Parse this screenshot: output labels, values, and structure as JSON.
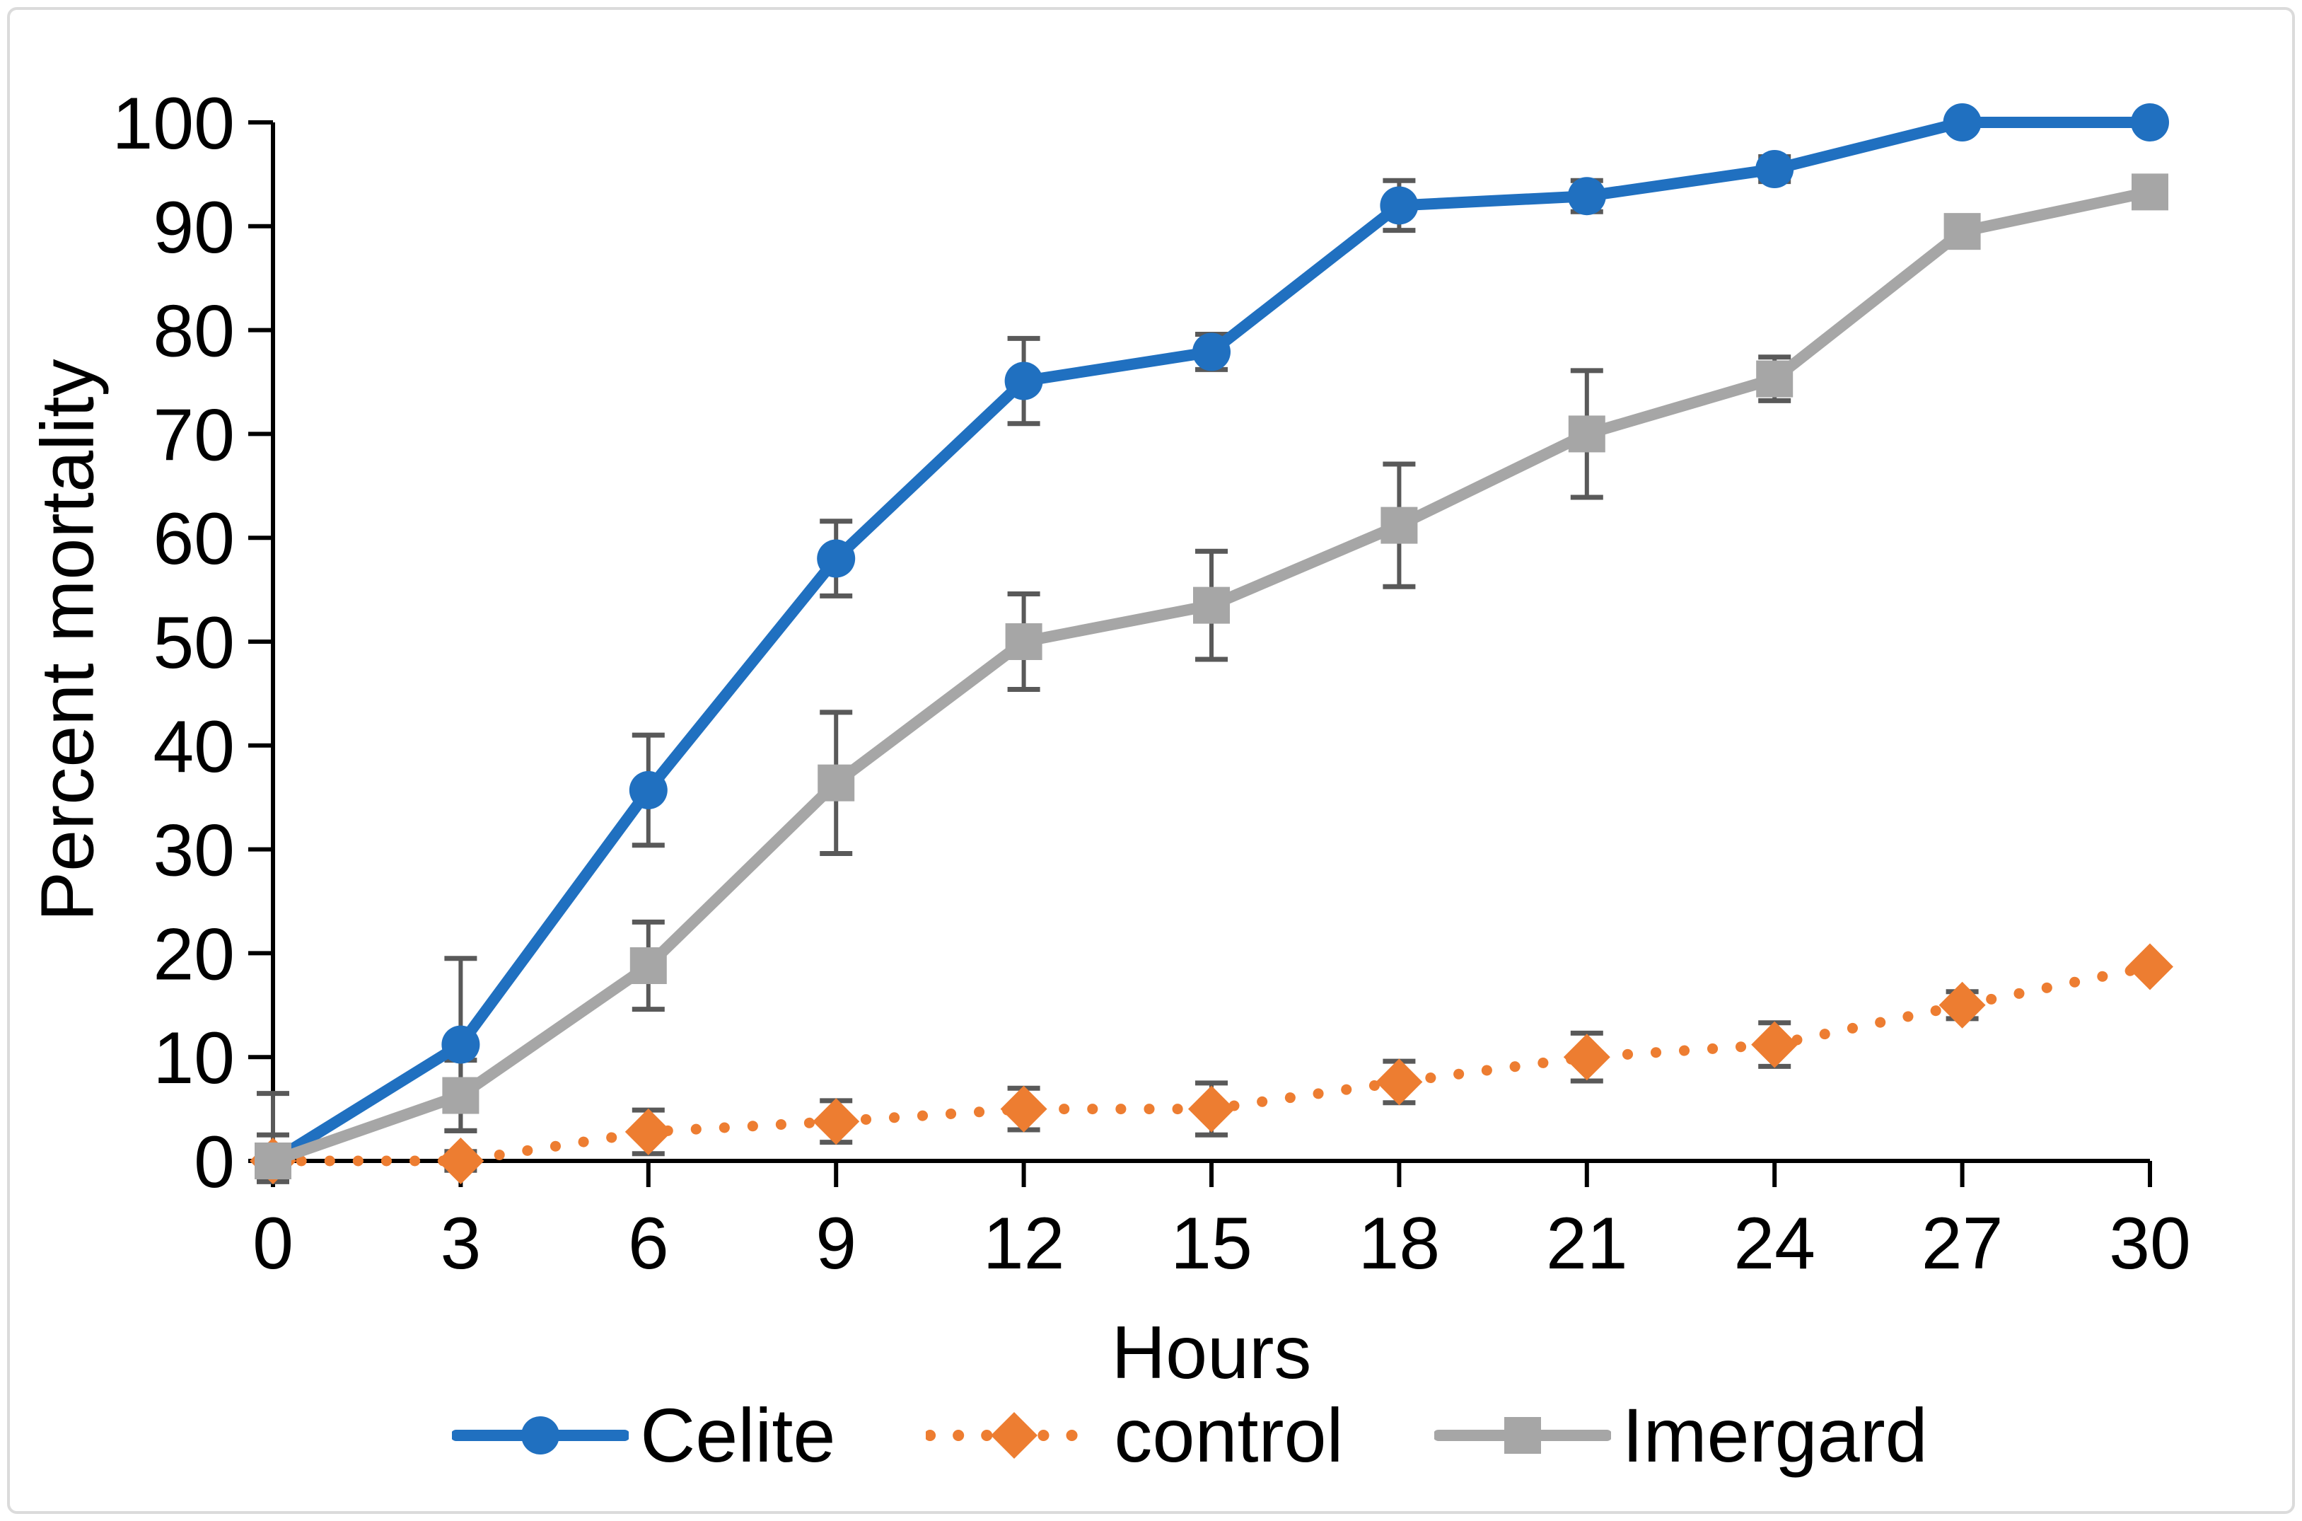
{
  "chart_data": {
    "type": "line",
    "title": "",
    "xlabel": "Hours",
    "ylabel": "Percent mortality",
    "x": [
      0,
      3,
      6,
      9,
      12,
      15,
      18,
      21,
      24,
      27,
      30
    ],
    "x_ticks": [
      0,
      3,
      6,
      9,
      12,
      15,
      18,
      21,
      24,
      27,
      30
    ],
    "y_ticks": [
      0,
      10,
      20,
      30,
      40,
      50,
      60,
      70,
      80,
      90,
      100
    ],
    "xlim": [
      0,
      30
    ],
    "ylim": [
      0,
      100
    ],
    "grid": false,
    "legend_position": "bottom",
    "axis_color": "#000000",
    "error_bar_color": "#595959",
    "figure_border_color": "#dbdbdb",
    "series": [
      {
        "name": "Celite",
        "color": "#2070c0",
        "marker": "circle",
        "line_style": "solid",
        "values": [
          0,
          11.2,
          35.7,
          58.0,
          75.1,
          77.9,
          92.0,
          92.9,
          95.5,
          100,
          100
        ],
        "err_up": [
          0,
          8.3,
          5.3,
          3.6,
          4.1,
          1.7,
          2.4,
          1.5,
          1.2,
          0,
          0
        ],
        "err_down": [
          0,
          8.3,
          5.3,
          3.6,
          4.1,
          1.7,
          2.4,
          1.5,
          1.2,
          0,
          0
        ]
      },
      {
        "name": "control",
        "color": "#ed7d31",
        "marker": "diamond",
        "line_style": "dotted",
        "values": [
          0,
          0,
          2.8,
          3.8,
          5.0,
          5.0,
          7.6,
          10.0,
          11.2,
          15.0,
          18.7
        ],
        "err_up": [
          2.5,
          0.9,
          2.1,
          2.0,
          2.0,
          2.5,
          2.0,
          2.3,
          2.1,
          1.3,
          0
        ],
        "err_down": [
          2.0,
          0.9,
          2.1,
          2.0,
          2.0,
          2.5,
          2.0,
          2.3,
          2.1,
          1.3,
          0
        ]
      },
      {
        "name": "Imergard",
        "color": "#a6a6a6",
        "marker": "square",
        "line_style": "solid",
        "values": [
          0,
          6.3,
          18.8,
          36.4,
          50.0,
          53.5,
          61.2,
          70.0,
          75.3,
          89.5,
          93.3
        ],
        "err_up": [
          6.5,
          3.4,
          4.2,
          6.8,
          4.6,
          5.2,
          5.9,
          6.1,
          2.1,
          0,
          0
        ],
        "err_down": [
          0,
          3.4,
          4.2,
          6.8,
          4.6,
          5.2,
          5.9,
          6.1,
          2.1,
          0,
          0
        ]
      }
    ]
  }
}
